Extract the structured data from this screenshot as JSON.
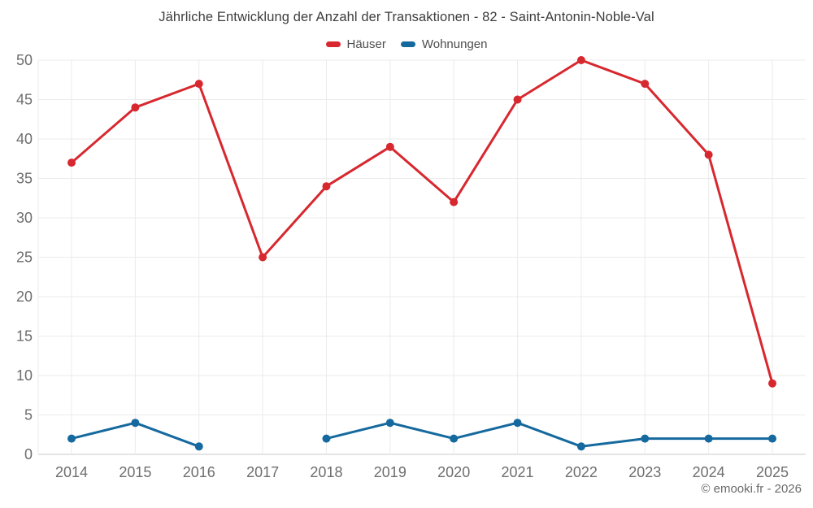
{
  "chart_data": {
    "type": "line",
    "title": "Jährliche Entwicklung der Anzahl der Transaktionen - 82 - Saint-Antonin-Noble-Val",
    "categories": [
      "2014",
      "2015",
      "2016",
      "2017",
      "2018",
      "2019",
      "2020",
      "2021",
      "2022",
      "2023",
      "2024",
      "2025"
    ],
    "series": [
      {
        "name": "Häuser",
        "color": "#d7282f",
        "values": [
          37,
          44,
          47,
          25,
          34,
          39,
          32,
          45,
          50,
          47,
          38,
          9
        ]
      },
      {
        "name": "Wohnungen",
        "color": "#15699e",
        "values": [
          2,
          4,
          1,
          null,
          2,
          4,
          2,
          4,
          1,
          2,
          2,
          2
        ]
      }
    ],
    "ylim": [
      0,
      50
    ],
    "ytick_step": 5,
    "yticks": [
      0,
      5,
      10,
      15,
      20,
      25,
      30,
      35,
      40,
      45,
      50
    ],
    "grid": "on",
    "legend_position": "top",
    "xlabel": "",
    "ylabel": ""
  },
  "footer": {
    "watermark": "© emooki.fr - 2026"
  },
  "colors": {
    "background": "#ffffff",
    "grid": "#ebebeb",
    "axis_line": "#c9c9c9",
    "tick_label": "#6e6e6e",
    "title": "#3d3d3d",
    "legend_label": "#4d4d4d",
    "watermark": "#6a6a6a",
    "haeuser": "#d7282f",
    "wohnungen": "#15699e"
  }
}
